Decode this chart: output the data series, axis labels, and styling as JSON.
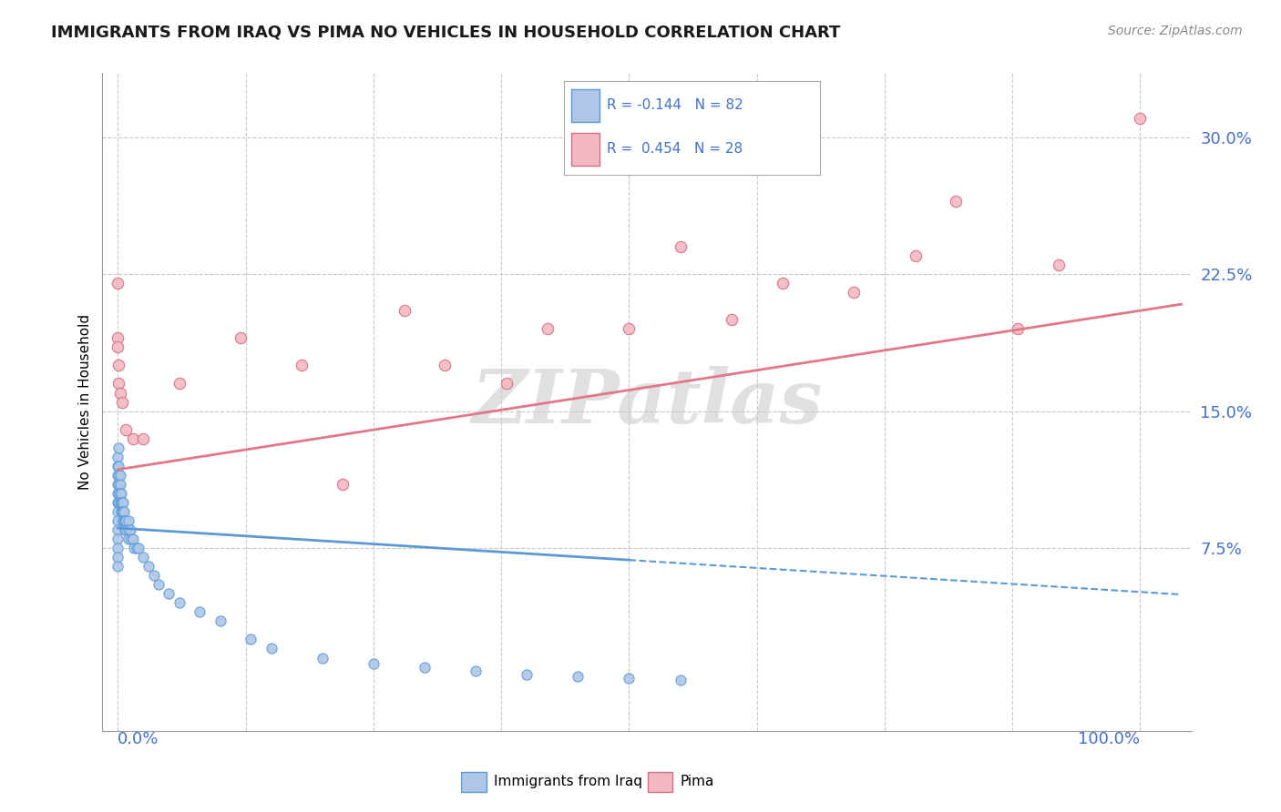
{
  "title": "IMMIGRANTS FROM IRAQ VS PIMA NO VEHICLES IN HOUSEHOLD CORRELATION CHART",
  "source": "Source: ZipAtlas.com",
  "ylabel": "No Vehicles in Household",
  "watermark": "ZIPatlas",
  "color_iraq": "#aec6e8",
  "color_iraq_edge": "#5b9bd5",
  "color_pima": "#f4b8c4",
  "color_pima_edge": "#d07080",
  "color_trend_iraq": "#5b9bd5",
  "color_trend_pima": "#e07888",
  "color_text_blue": "#4472c4",
  "color_grid": "#c8c8c8",
  "background": "#ffffff",
  "xlim": [
    -0.015,
    1.05
  ],
  "ylim": [
    -0.025,
    0.335
  ],
  "yticks": [
    0.075,
    0.15,
    0.225,
    0.3
  ],
  "ytick_labels": [
    "7.5%",
    "15.0%",
    "22.5%",
    "30.0%"
  ],
  "iraq_x": [
    0.0,
    0.0,
    0.0,
    0.0,
    0.0,
    0.0,
    0.0,
    0.0,
    0.0,
    0.0,
    0.0,
    0.0,
    0.0,
    0.001,
    0.001,
    0.001,
    0.001,
    0.001,
    0.001,
    0.002,
    0.002,
    0.002,
    0.002,
    0.003,
    0.003,
    0.003,
    0.004,
    0.004,
    0.005,
    0.005,
    0.005,
    0.006,
    0.006,
    0.007,
    0.007,
    0.008,
    0.008,
    0.01,
    0.01,
    0.01,
    0.012,
    0.013,
    0.015,
    0.016,
    0.018,
    0.02,
    0.025,
    0.03,
    0.035,
    0.04,
    0.05,
    0.06,
    0.08,
    0.1,
    0.13,
    0.15,
    0.2,
    0.25,
    0.3,
    0.35,
    0.4,
    0.45,
    0.5,
    0.55
  ],
  "iraq_y": [
    0.125,
    0.12,
    0.115,
    0.11,
    0.105,
    0.1,
    0.095,
    0.09,
    0.085,
    0.08,
    0.075,
    0.07,
    0.065,
    0.13,
    0.12,
    0.115,
    0.11,
    0.105,
    0.1,
    0.115,
    0.11,
    0.105,
    0.1,
    0.105,
    0.1,
    0.095,
    0.1,
    0.095,
    0.1,
    0.095,
    0.09,
    0.095,
    0.09,
    0.09,
    0.085,
    0.09,
    0.085,
    0.09,
    0.085,
    0.08,
    0.085,
    0.08,
    0.08,
    0.075,
    0.075,
    0.075,
    0.07,
    0.065,
    0.06,
    0.055,
    0.05,
    0.045,
    0.04,
    0.035,
    0.025,
    0.02,
    0.015,
    0.012,
    0.01,
    0.008,
    0.006,
    0.005,
    0.004,
    0.003
  ],
  "pima_x": [
    0.0,
    0.0,
    0.0,
    0.001,
    0.001,
    0.002,
    0.004,
    0.008,
    0.015,
    0.025,
    0.06,
    0.12,
    0.18,
    0.22,
    0.28,
    0.32,
    0.38,
    0.42,
    0.5,
    0.55,
    0.6,
    0.65,
    0.72,
    0.78,
    0.82,
    0.88,
    0.92,
    1.0
  ],
  "pima_y": [
    0.22,
    0.19,
    0.185,
    0.175,
    0.165,
    0.16,
    0.155,
    0.14,
    0.135,
    0.135,
    0.165,
    0.19,
    0.175,
    0.11,
    0.205,
    0.175,
    0.165,
    0.195,
    0.195,
    0.24,
    0.2,
    0.22,
    0.215,
    0.235,
    0.265,
    0.195,
    0.23,
    0.31
  ],
  "iraq_trend_solid_end": 0.5,
  "iraq_trend_slope": -0.035,
  "iraq_trend_intercept": 0.086,
  "pima_trend_slope": 0.087,
  "pima_trend_intercept": 0.118
}
